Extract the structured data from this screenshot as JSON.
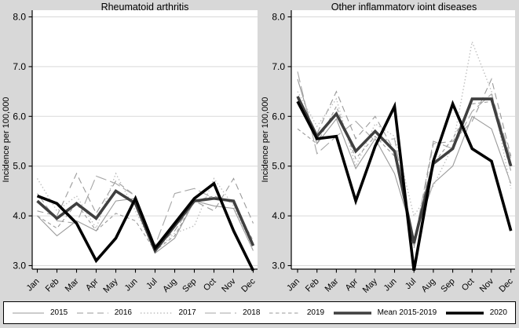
{
  "figure": {
    "ylabel": "Incidence per 100,000",
    "months": [
      "Jan",
      "Feb",
      "Mar",
      "Apr",
      "May",
      "Jun",
      "Jul",
      "Aug",
      "Sep",
      "Oct",
      "Nov",
      "Dec"
    ],
    "ytick_labels": [
      "8.0",
      "7.0",
      "6.0",
      "5.0",
      "4.0",
      "3.0"
    ]
  },
  "chart_data": [
    {
      "type": "line",
      "title": "Rheumatoid arthritis",
      "xlabel": "",
      "ylabel": "Incidence per 100,000",
      "x_categories": [
        "Jan",
        "Feb",
        "Mar",
        "Apr",
        "May",
        "Jun",
        "Jul",
        "Aug",
        "Sep",
        "Oct",
        "Nov",
        "Dec"
      ],
      "ylim": [
        2.8,
        8.3
      ],
      "yticks": [
        3.0,
        4.0,
        5.0,
        6.0,
        7.0,
        8.0
      ],
      "grid": "horizontal",
      "legend_position": "bottom",
      "series": [
        {
          "name": "2015",
          "line_style": "solid-thin",
          "values": [
            4.0,
            3.6,
            3.9,
            3.7,
            4.3,
            4.35,
            3.25,
            3.55,
            4.3,
            4.2,
            4.15,
            3.3
          ]
        },
        {
          "name": "2016",
          "line_style": "dashed",
          "values": [
            4.1,
            4.0,
            4.85,
            4.05,
            4.7,
            4.4,
            3.35,
            3.7,
            4.3,
            4.1,
            4.75,
            3.85
          ]
        },
        {
          "name": "2017",
          "line_style": "dotted",
          "values": [
            4.75,
            4.1,
            4.4,
            3.75,
            4.85,
            4.1,
            3.3,
            3.65,
            3.8,
            4.75,
            4.2,
            3.3
          ]
        },
        {
          "name": "2018",
          "line_style": "long-dashed",
          "values": [
            4.45,
            3.9,
            3.85,
            4.8,
            4.65,
            4.4,
            3.4,
            4.45,
            4.55,
            4.35,
            4.3,
            3.35
          ]
        },
        {
          "name": "2019",
          "line_style": "short-dashed",
          "values": [
            4.0,
            3.75,
            4.25,
            3.7,
            4.05,
            3.9,
            3.3,
            3.6,
            4.3,
            4.4,
            4.25,
            3.5
          ]
        },
        {
          "name": "Mean 2015-2019",
          "line_style": "thick-gray",
          "values": [
            4.3,
            3.95,
            4.25,
            3.95,
            4.5,
            4.25,
            3.3,
            3.8,
            4.3,
            4.35,
            4.3,
            3.4
          ]
        },
        {
          "name": "2020",
          "line_style": "thick-black",
          "values": [
            4.4,
            4.25,
            3.85,
            3.1,
            3.55,
            4.35,
            3.35,
            3.85,
            4.35,
            4.65,
            3.7,
            2.9
          ]
        }
      ]
    },
    {
      "type": "line",
      "title": "Other inflammatory joint diseases",
      "xlabel": "",
      "ylabel": "Incidence per 100,000",
      "x_categories": [
        "Jan",
        "Feb",
        "Mar",
        "Apr",
        "May",
        "Jun",
        "Jul",
        "Aug",
        "Sep",
        "Oct",
        "Nov",
        "Dec"
      ],
      "ylim": [
        2.8,
        8.3
      ],
      "yticks": [
        3.0,
        4.0,
        5.0,
        6.0,
        7.0,
        8.0
      ],
      "grid": "horizontal",
      "legend_position": "bottom",
      "series": [
        {
          "name": "2015",
          "line_style": "solid-thin",
          "values": [
            6.75,
            5.45,
            5.95,
            4.95,
            5.55,
            4.85,
            3.55,
            4.65,
            5.0,
            6.0,
            5.75,
            4.65
          ]
        },
        {
          "name": "2016",
          "line_style": "dashed",
          "values": [
            6.35,
            5.65,
            6.5,
            5.55,
            6.0,
            5.3,
            3.35,
            5.45,
            5.5,
            5.9,
            6.75,
            5.2
          ]
        },
        {
          "name": "2017",
          "line_style": "dotted",
          "values": [
            6.5,
            5.8,
            6.35,
            5.0,
            5.85,
            5.6,
            4.0,
            4.6,
            5.4,
            7.5,
            6.5,
            4.55
          ]
        },
        {
          "name": "2018",
          "line_style": "long-dashed",
          "values": [
            6.9,
            5.25,
            5.6,
            5.9,
            5.5,
            5.55,
            3.45,
            5.5,
            5.35,
            6.1,
            6.45,
            5.15
          ]
        },
        {
          "name": "2019",
          "line_style": "short-dashed",
          "values": [
            5.75,
            5.45,
            6.2,
            5.15,
            5.6,
            5.2,
            3.4,
            5.05,
            5.55,
            6.25,
            6.3,
            4.9
          ]
        },
        {
          "name": "Mean 2015-2019",
          "line_style": "thick-gray",
          "values": [
            6.4,
            5.6,
            6.05,
            5.3,
            5.7,
            5.3,
            3.45,
            5.05,
            5.35,
            6.35,
            6.35,
            5.0
          ]
        },
        {
          "name": "2020",
          "line_style": "thick-black",
          "values": [
            6.3,
            5.55,
            5.6,
            4.3,
            5.4,
            6.2,
            2.9,
            5.1,
            6.25,
            5.35,
            5.1,
            3.7
          ]
        }
      ]
    }
  ],
  "legend": {
    "entries": [
      {
        "label": "2015",
        "line_style": "solid-thin"
      },
      {
        "label": "2016",
        "line_style": "dashed"
      },
      {
        "label": "2017",
        "line_style": "dotted"
      },
      {
        "label": "2018",
        "line_style": "long-dashed"
      },
      {
        "label": "2019",
        "line_style": "short-dashed"
      },
      {
        "label": "Mean 2015-2019",
        "line_style": "thick-gray"
      },
      {
        "label": "2020",
        "line_style": "thick-black"
      }
    ]
  },
  "colors": {
    "outer_bg": "#d8d8d8",
    "plot_bg": "#ffffff",
    "gridline": "#d9d9d9",
    "axis": "#000000",
    "year_line": "#9a9a9a",
    "dotted_line": "#bdbdbd",
    "longdash_line": "#a6a6a6",
    "mean_line": "#3f3f3f",
    "line_2020": "#000000",
    "legend_bg": "#ffffff",
    "legend_border": "#000000"
  }
}
